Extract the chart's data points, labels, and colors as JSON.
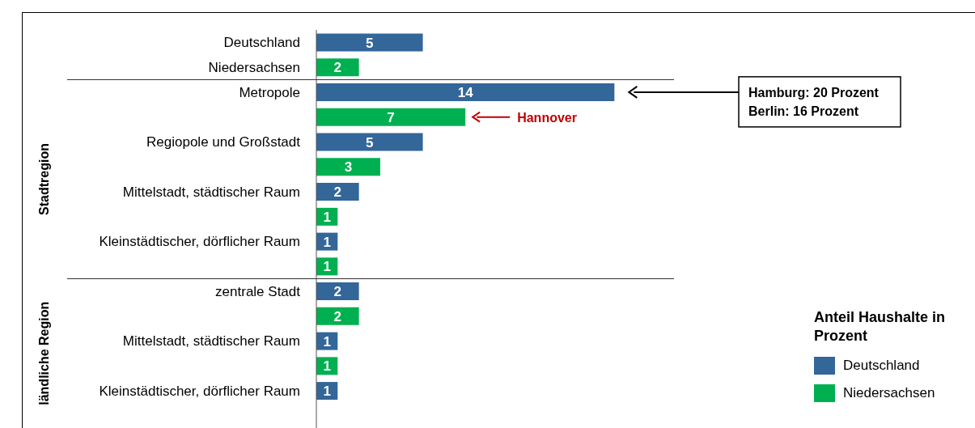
{
  "chart_data": {
    "type": "bar",
    "orientation": "horizontal",
    "stacked": true,
    "categories": [
      "Deutschland",
      "Niedersachsen",
      "Metropole",
      null,
      "Regiopole und Großstadt",
      null,
      "Mittelstadt, städtischer Raum",
      null,
      "Kleinstädtischer, dörflicher Raum",
      null,
      "zentrale Stadt",
      null,
      "Mittelstadt, städtischer Raum",
      null,
      "Kleinstädtischer, dörflicher Raum",
      null
    ],
    "series": [
      {
        "name": "Deutschland",
        "color": "#336699",
        "values": [
          5,
          null,
          14,
          null,
          5,
          null,
          2,
          null,
          1,
          null,
          2,
          null,
          1,
          null,
          1,
          null
        ]
      },
      {
        "name": "Niedersachsen",
        "color": "#00b050",
        "values": [
          null,
          2,
          null,
          7,
          null,
          3,
          null,
          1,
          null,
          1,
          null,
          2,
          null,
          1,
          null,
          null
        ]
      }
    ],
    "data_labels": true,
    "legend": "bottom right",
    "legend_title": "Anteil Haushalte in Prozent",
    "tick_labels": "y",
    "grid": false,
    "annotations": [
      "Stadtregion",
      "ländliche Region",
      "Hamburg: 20 Prozent\nBerlin: 16 Prozent",
      "Hannover"
    ]
  }
}
